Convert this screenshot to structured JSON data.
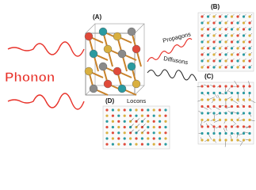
{
  "left_label": "Phonon",
  "panels": {
    "a": "(A)",
    "b": "(B)",
    "c": "(C)",
    "d": "(D)"
  },
  "arrows": {
    "propagons": "Propagons",
    "diffusons": "Diffusons",
    "locons": "Locons"
  }
}
